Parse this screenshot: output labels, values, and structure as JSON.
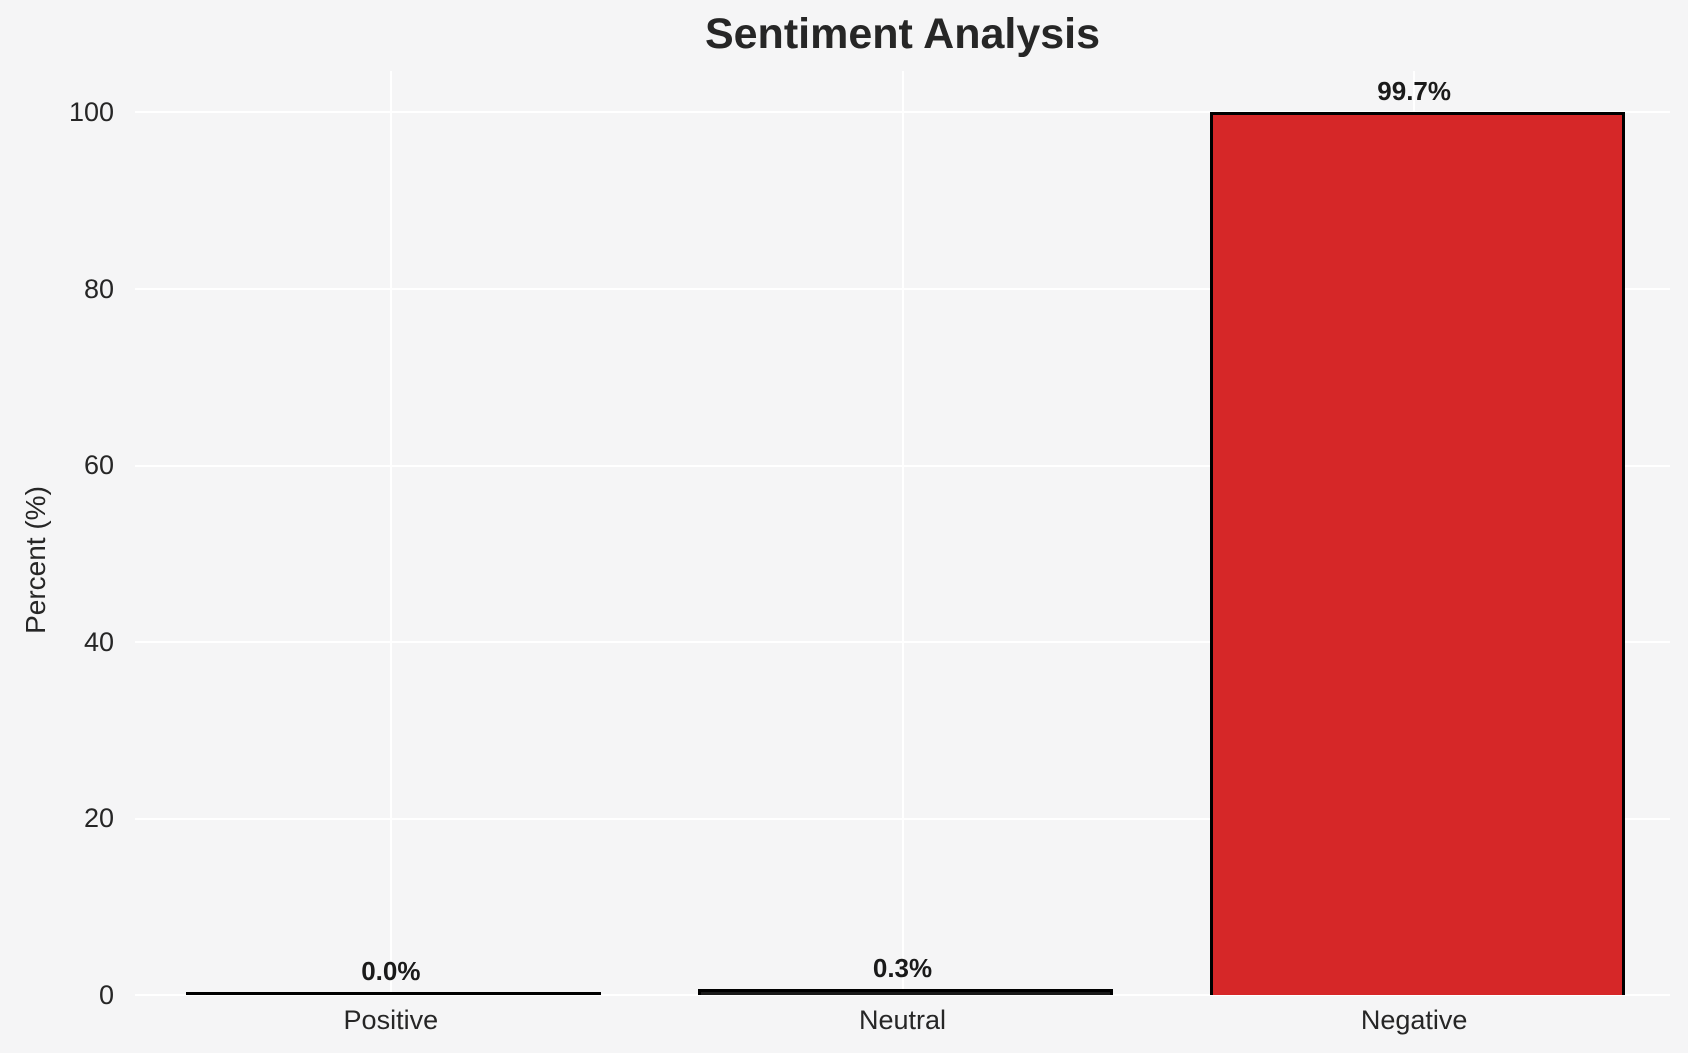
{
  "chart_data": {
    "type": "bar",
    "title": "Sentiment Analysis",
    "xlabel": "",
    "ylabel": "Percent (%)",
    "categories": [
      "Positive",
      "Neutral",
      "Negative"
    ],
    "values": [
      0.0,
      0.3,
      99.7
    ],
    "value_labels": [
      "0.0%",
      "0.3%",
      "99.7%"
    ],
    "bar_fill_colors": [
      "#1a1a1a",
      "#1a1a1a",
      "#d62728"
    ],
    "bar_edge_color": "#000000",
    "bar_width_fraction": 0.8,
    "yticks": [
      0,
      20,
      40,
      60,
      80,
      100
    ],
    "ylim": [
      0,
      104.7
    ],
    "grid": true,
    "grid_color": "#ffffff",
    "background_color": "#f5f5f6",
    "text_color": "#262626",
    "legend": null
  }
}
